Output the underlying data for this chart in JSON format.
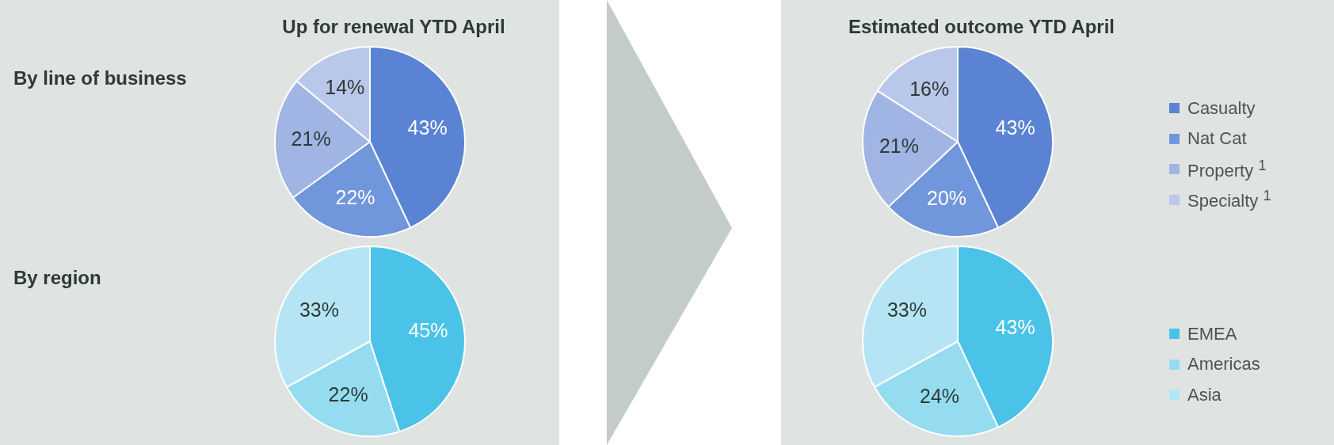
{
  "chart_data": [
    {
      "type": "pie",
      "title": "Up for renewal YTD April",
      "annotations": [
        "By line of business"
      ],
      "categories": [
        null,
        null,
        null,
        null
      ],
      "values": [
        43,
        22,
        21,
        14
      ],
      "colors": [
        "#5a83d3",
        "#7096db",
        "#a0b5e3",
        "#b8c7ea"
      ],
      "value_labels": [
        "43%",
        "22%",
        "21%",
        "14%"
      ]
    },
    {
      "type": "pie",
      "annotations": [
        "By region"
      ],
      "categories": [
        null,
        null,
        null
      ],
      "values": [
        45,
        22,
        33
      ],
      "colors": [
        "#4bc3e8",
        "#96dcf1",
        "#b5e5f5"
      ],
      "value_labels": [
        "45%",
        "22%",
        "33%"
      ]
    },
    {
      "type": "pie",
      "title": "Estimated outcome YTD April",
      "categories": [
        "Casualty",
        "Nat Cat",
        "Property $^{1}$",
        "Specialty $^{1}$"
      ],
      "values": [
        43,
        20,
        21,
        16
      ],
      "colors": [
        "#5a83d3",
        "#7096db",
        "#a0b5e3",
        "#b8c7ea"
      ],
      "value_labels": [
        "43%",
        "20%",
        "21%",
        "16%"
      ],
      "legend": "right"
    },
    {
      "type": "pie",
      "categories": [
        "EMEA",
        "Americas",
        "Asia"
      ],
      "values": [
        43,
        24,
        33
      ],
      "colors": [
        "#4bc3e8",
        "#96dcf1",
        "#b5e5f5"
      ],
      "value_labels": [
        "43%",
        "24%",
        "33%"
      ],
      "legend": "right"
    }
  ]
}
